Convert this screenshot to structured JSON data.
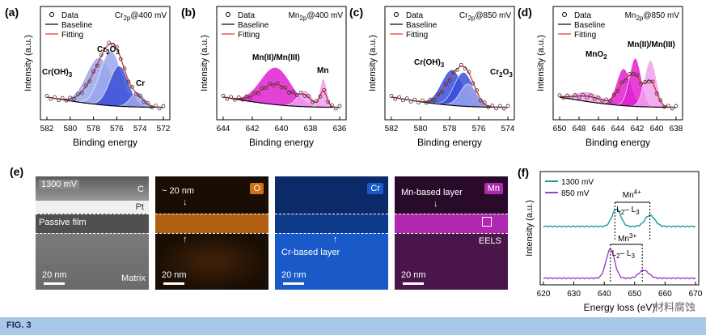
{
  "xps_panels": [
    {
      "letter": "(a)",
      "title_el": "Cr",
      "title_sub": "2p",
      "title_rest": "@400 mV",
      "xticks": [
        "582",
        "580",
        "578",
        "576",
        "574",
        "572"
      ],
      "peaks": [
        {
          "t": "Cr(OH)",
          "sub": "3"
        },
        {
          "t": "Cr",
          "sub": "2",
          "t2": "O",
          "sub2": "3"
        },
        {
          "t": "Cr"
        }
      ]
    },
    {
      "letter": "(b)",
      "title_el": "Mn",
      "title_sub": "2p",
      "title_rest": "@400 mV",
      "xticks": [
        "644",
        "642",
        "640",
        "638",
        "636"
      ],
      "peaks": [
        {
          "t": "Mn(II)/Mn(III)"
        },
        {
          "t": "Mn"
        }
      ]
    },
    {
      "letter": "(c)",
      "title_el": "Cr",
      "title_sub": "2p",
      "title_rest": "@850 mV",
      "xticks": [
        "582",
        "580",
        "578",
        "576",
        "574"
      ],
      "peaks": [
        {
          "t": "Cr(OH)",
          "sub": "3"
        },
        {
          "t": "Cr",
          "sub": "2",
          "t2": "O",
          "sub2": "3"
        }
      ]
    },
    {
      "letter": "(d)",
      "title_el": "Mn",
      "title_sub": "2p",
      "title_rest": "@850 mV",
      "xticks": [
        "650",
        "648",
        "646",
        "644",
        "642",
        "640",
        "638"
      ],
      "peaks": [
        {
          "t": "MnO",
          "sub": "2"
        },
        {
          "t": "Mn(II)/Mn(III)"
        }
      ]
    }
  ],
  "legend": {
    "data": "Data",
    "baseline": "Baseline",
    "fitting": "Fitting"
  },
  "ylabel": "Intensity (a.u.)",
  "xlabel": "Binding energy",
  "panel_e": {
    "letter": "(e)",
    "img1": {
      "voltage": "1300 mV",
      "c": "C",
      "pt": "Pt",
      "film": "Passive film",
      "scale": "20 nm",
      "matrix": "Matrix"
    },
    "img2": {
      "thick": "~ 20 nm",
      "tag": "O",
      "scale": "20 nm"
    },
    "img3": {
      "tag": "Cr",
      "layer": "Cr-based layer",
      "scale": "20 nm"
    },
    "img4": {
      "tag": "Mn",
      "layer": "Mn-based layer",
      "eels": "EELS",
      "scale": "20 nm"
    }
  },
  "panel_f": {
    "letter": "(f)",
    "legend": [
      "1300 mV",
      "850 mV"
    ],
    "mn4": "Mn",
    "mn4sup": "4+",
    "mn3": "Mn",
    "mn3sup": "3+",
    "l2": "L",
    "l2sub": "2",
    "l3": "L",
    "l3sub": "3",
    "xticks": [
      "620",
      "630",
      "640",
      "650",
      "660",
      "670"
    ],
    "ylabel": "Intensity (a.u.)",
    "xlabel": "Energy loss (eV)",
    "colors": {
      "s1300": "#1a9c9c",
      "s850": "#a040c8"
    },
    "watermark": "材料腐蚀"
  },
  "caption": "FIG. 3",
  "colors": {
    "fitting": "#e03030",
    "crDark": "#3a4fd8",
    "crLight": "#9aa6ec",
    "mnDark": "#e020d0",
    "mnLight": "#f0a0ee"
  }
}
